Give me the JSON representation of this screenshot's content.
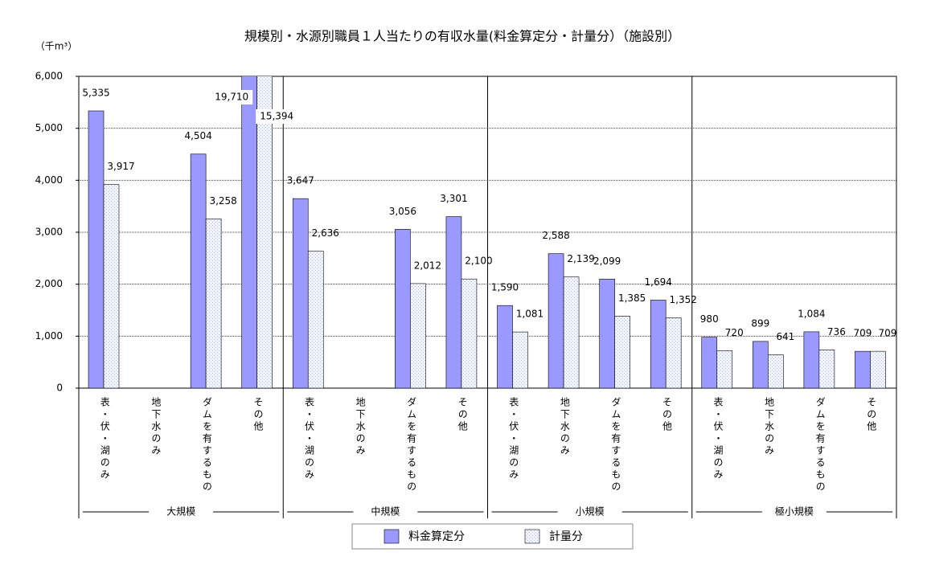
{
  "chart_data": {
    "type": "bar",
    "title": "規模別・水源別職員１人当たりの有収水量(料金算定分・計量分）（施設別）",
    "y_unit": "（千m³）",
    "categories": [
      "表・伏・湖のみ",
      "地下水のみ",
      "ダムを有するもの",
      "その他",
      "表・伏・湖のみ",
      "地下水のみ",
      "ダムを有するもの",
      "その他",
      "表・伏・湖のみ",
      "地下水のみ",
      "ダムを有するもの",
      "その他",
      "表・伏・湖のみ",
      "地下水のみ",
      "ダムを有するもの",
      "その他"
    ],
    "groups": [
      "大規模",
      "中規模",
      "小規模",
      "極小規模"
    ],
    "series": [
      {
        "name": "料金算定分",
        "color": "#9999ff",
        "pattern": false,
        "values": [
          5335,
          null,
          4504,
          19710,
          3647,
          null,
          3056,
          3301,
          1590,
          2588,
          2099,
          1694,
          980,
          899,
          1084,
          709
        ],
        "value_labels": [
          "5,335",
          null,
          "4,504",
          "19,710",
          "3,647",
          null,
          "3,056",
          "3,301",
          "1,590",
          "2,588",
          "2,099",
          "1,694",
          "980",
          "899",
          "1,084",
          "709"
        ]
      },
      {
        "name": "計量分",
        "color": "#aab4ee",
        "pattern": true,
        "values": [
          3917,
          null,
          3258,
          15394,
          2636,
          null,
          2012,
          2100,
          1081,
          2139,
          1385,
          1352,
          720,
          641,
          736,
          709
        ],
        "value_labels": [
          "3,917",
          null,
          "3,258",
          "15,394",
          "2,636",
          null,
          "2,012",
          "2,100",
          "1,081",
          "2,139",
          "1,385",
          "1,352",
          "720",
          "641",
          "736",
          "709"
        ]
      }
    ],
    "ylim": [
      0,
      6000
    ],
    "yticks": [
      0,
      {
        "value": 1000,
        "label": "1,000"
      },
      {
        "value": 2000,
        "label": "2,000"
      },
      {
        "value": 3000,
        "label": "3,000"
      },
      {
        "value": 4000,
        "label": "4,000"
      },
      {
        "value": 5000,
        "label": "5,000"
      },
      {
        "value": 6000,
        "label": "6,000"
      }
    ],
    "grid": true,
    "legend": "bottom"
  }
}
